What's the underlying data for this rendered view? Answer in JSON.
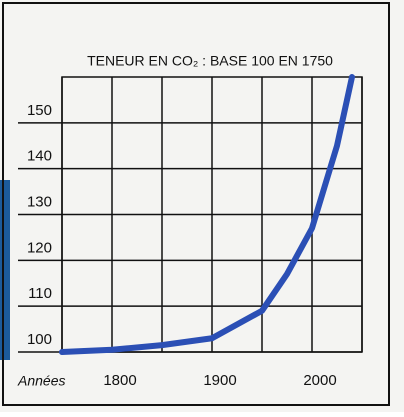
{
  "chart_data": {
    "type": "line",
    "title": "TENEUR EN CO₂ : BASE 100 EN 1750",
    "x_label": "Années",
    "x": [
      1750,
      1800,
      1850,
      1900,
      1950,
      1975,
      2000,
      2025,
      2040
    ],
    "series": [
      {
        "name": "CO₂",
        "color": "#2b4fb5",
        "values": [
          100,
          100.5,
          101.5,
          103,
          109,
          117,
          127,
          145,
          160
        ]
      }
    ],
    "xlim": [
      1750,
      2050
    ],
    "xticks": [
      1800,
      1900,
      2000
    ],
    "x_minor_ticks": [
      1750,
      1850,
      1950,
      2050
    ],
    "ylim": [
      100,
      160
    ],
    "yticks": [
      100,
      110,
      120,
      130,
      140,
      150
    ],
    "grid": true
  }
}
